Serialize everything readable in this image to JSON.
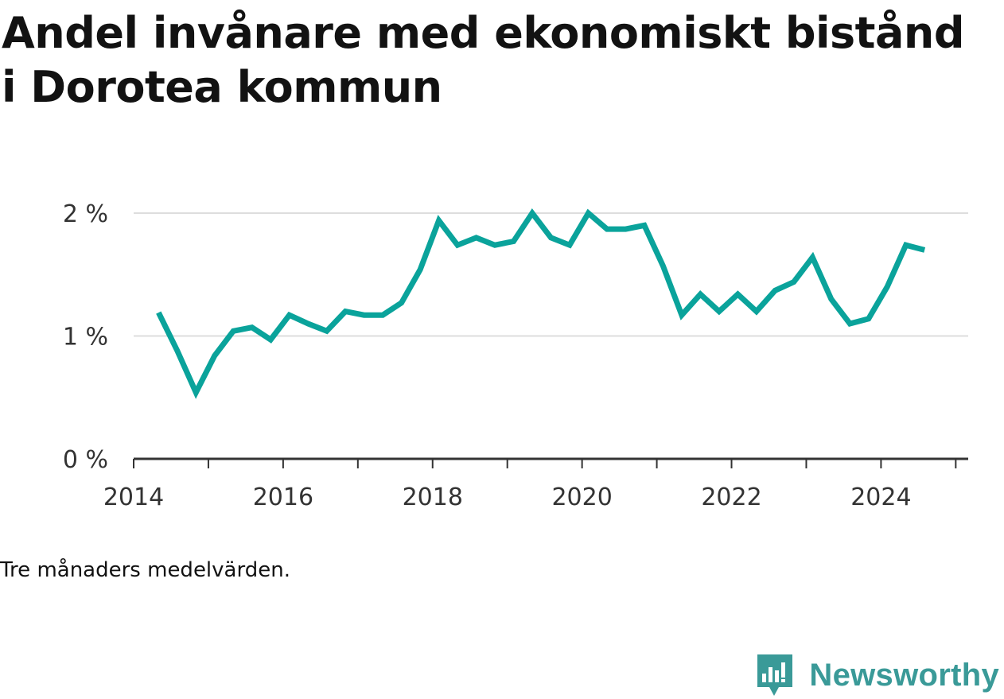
{
  "title": "Andel invånare med ekonomiskt bistånd i Dorotea kommun",
  "footnote": "Tre månaders medelvärden.",
  "brand": {
    "name": "Newsworthy",
    "icon": "newsworthy-logo-icon"
  },
  "colors": {
    "line": "#0aa39b",
    "grid": "#dddddd",
    "axis": "#333333",
    "text": "#333333",
    "brand": "#3a9a98"
  },
  "chart_data": {
    "type": "line",
    "title": "Andel invånare med ekonomiskt bistånd i Dorotea kommun",
    "xlabel": "",
    "ylabel": "",
    "x_ticks": [
      "2014",
      "2016",
      "2018",
      "2020",
      "2022",
      "2024"
    ],
    "y_ticks": [
      "0 %",
      "1 %",
      "2 %"
    ],
    "xlim": [
      "2014-01",
      "2025-03"
    ],
    "ylim": [
      0,
      2
    ],
    "grid": true,
    "legend": "none",
    "series": [
      {
        "name": "",
        "x": [
          "2014-05",
          "2014-08",
          "2014-11",
          "2015-02",
          "2015-05",
          "2015-08",
          "2015-11",
          "2016-02",
          "2016-05",
          "2016-08",
          "2016-11",
          "2017-02",
          "2017-05",
          "2017-08",
          "2017-11",
          "2018-02",
          "2018-05",
          "2018-08",
          "2018-11",
          "2019-02",
          "2019-05",
          "2019-08",
          "2019-11",
          "2020-02",
          "2020-05",
          "2020-08",
          "2020-11",
          "2021-02",
          "2021-05",
          "2021-08",
          "2021-11",
          "2022-02",
          "2022-05",
          "2022-08",
          "2022-11",
          "2023-02",
          "2023-05",
          "2023-08",
          "2023-11",
          "2024-02",
          "2024-05",
          "2024-08"
        ],
        "values": [
          1.19,
          0.88,
          0.54,
          0.84,
          1.04,
          1.07,
          0.97,
          1.17,
          1.1,
          1.04,
          1.2,
          1.17,
          1.17,
          1.27,
          1.54,
          1.94,
          1.74,
          1.8,
          1.74,
          1.77,
          2.0,
          1.8,
          1.74,
          2.0,
          1.87,
          1.87,
          1.9,
          1.57,
          1.17,
          1.34,
          1.2,
          1.34,
          1.2,
          1.37,
          1.44,
          1.64,
          1.3,
          1.1,
          1.14,
          1.4,
          1.74,
          1.7
        ]
      }
    ]
  }
}
